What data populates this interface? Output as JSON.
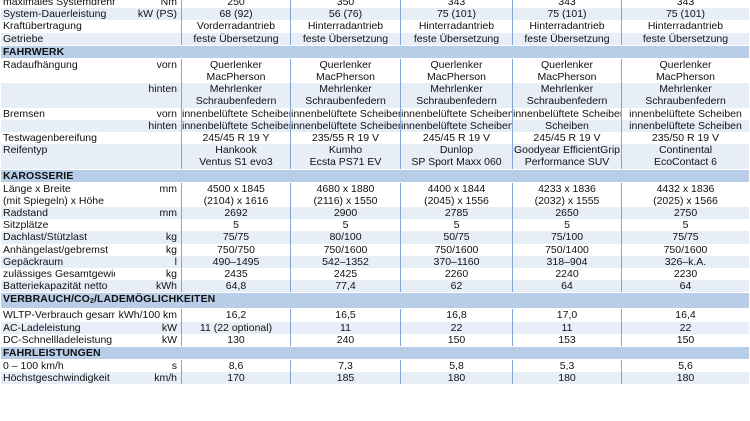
{
  "colors": {
    "section_bg": "#b8cde8",
    "alt_row_bg": "#e7eef8",
    "divider": "#7fa8d6"
  },
  "rows": [
    {
      "type": "data",
      "label": "maximales Systemdrehmoment",
      "unit": "Nm",
      "values": [
        "250",
        "350",
        "343",
        "343",
        "343"
      ]
    },
    {
      "type": "data",
      "label": "System-Dauerleistung",
      "unit": "kW (PS)",
      "values": [
        "68 (92)",
        "56 (76)",
        "75 (101)",
        "75 (101)",
        "75 (101)"
      ]
    },
    {
      "type": "data",
      "label": "Kraftübertragung",
      "unit": "",
      "values": [
        "Vorderradantrieb",
        "Hinterradantrieb",
        "Hinterradantrieb",
        "Hinterradantrieb",
        "Hinterradantrieb"
      ]
    },
    {
      "type": "data",
      "label": "Getriebe",
      "unit": "",
      "values": [
        "feste Übersetzung",
        "feste Übersetzung",
        "feste Übersetzung",
        "feste Übersetzung",
        "feste Übersetzung"
      ]
    },
    {
      "type": "section",
      "title": "FAHRWERK"
    },
    {
      "type": "data",
      "label": "Radaufhängung",
      "unit": "vorn",
      "values": [
        "Querlenker\nMacPherson",
        "Querlenker\nMacPherson",
        "Querlenker\nMacPherson",
        "Querlenker\nMacPherson",
        "Querlenker\nMacPherson"
      ]
    },
    {
      "type": "data",
      "label": "",
      "unit": "hinten",
      "values": [
        "Mehrlenker\nSchraubenfedern",
        "Mehrlenker\nSchraubenfedern",
        "Mehrlenker\nSchraubenfedern",
        "Mehrlenker\nSchraubenfedern",
        "Mehrlenker\nSchraubenfedern"
      ]
    },
    {
      "type": "data",
      "label": "Bremsen",
      "unit": "vorn",
      "values": [
        "innenbelüftete Scheiben",
        "innenbelüftete Scheiben",
        "innenbelüftete Scheiben",
        "innenbelüftete Scheiben",
        "innenbelüftete Scheiben"
      ]
    },
    {
      "type": "data",
      "label": "",
      "unit": "hinten",
      "values": [
        "innenbelüftete Scheiben",
        "innenbelüftete Scheiben",
        "innenbelüftete Scheiben",
        "Scheiben",
        "innenbelüftete Scheiben"
      ]
    },
    {
      "type": "data",
      "label": "Testwagenbereifung",
      "unit": "",
      "values": [
        "245/45 R 19 Y",
        "235/55 R 19 V",
        "245/45 R 19 V",
        "245/45 R 19 V",
        "235/50 R 19 V"
      ]
    },
    {
      "type": "data",
      "label": "Reifentyp",
      "unit": "",
      "values": [
        "Hankook\nVentus S1 evo3",
        "Kumho\nEcsta PS71 EV",
        "Dunlop\nSP Sport Maxx 060",
        "Goodyear EfficientGrip\nPerformance SUV",
        "Continental\nEcoContact 6"
      ]
    },
    {
      "type": "section",
      "title": "KAROSSERIE"
    },
    {
      "type": "data",
      "label": "Länge x Breite\n(mit Spiegeln) x Höhe",
      "unit": "mm",
      "values": [
        "4500 x 1845\n(2104) x 1616",
        "4680 x 1880\n(2116) x 1550",
        "4400 x 1844\n(2045) x 1556",
        "4233 x 1836\n(2032) x 1555",
        "4432 x 1836\n(2025) x 1566"
      ]
    },
    {
      "type": "data",
      "label": "Radstand",
      "unit": "mm",
      "values": [
        "2692",
        "2900",
        "2785",
        "2650",
        "2750"
      ]
    },
    {
      "type": "data",
      "label": "Sitzplätze",
      "unit": "",
      "values": [
        "5",
        "5",
        "5",
        "5",
        "5"
      ]
    },
    {
      "type": "data",
      "label": "Dachlast/Stützlast",
      "unit": "kg",
      "values": [
        "75/75",
        "80/100",
        "50/75",
        "75/100",
        "75/75"
      ]
    },
    {
      "type": "data",
      "label": "Anhängelast/gebremst",
      "unit": "kg",
      "values": [
        "750/750",
        "750/1600",
        "750/1600",
        "750/1400",
        "750/1600"
      ]
    },
    {
      "type": "data",
      "label": "Gepäckraum",
      "unit": "l",
      "values": [
        "490–1495",
        "542–1352",
        "370–1160",
        "318–904",
        "326–k.A."
      ]
    },
    {
      "type": "data",
      "label": "zulässiges Gesamtgewicht",
      "unit": "kg",
      "values": [
        "2435",
        "2425",
        "2260",
        "2240",
        "2230"
      ]
    },
    {
      "type": "data",
      "label": "Batteriekapazität netto",
      "unit": "kWh",
      "values": [
        "64,8",
        "77,4",
        "62",
        "64",
        "64"
      ]
    },
    {
      "type": "section",
      "title_pre": "VERBRAUCH/CO",
      "title_sub": "2",
      "title_post": "/LADEMÖGLICHKEITEN"
    },
    {
      "type": "data",
      "label": "WLTP-Verbrauch gesamt",
      "unit": "kWh/100 km",
      "values": [
        "16,2",
        "16,5",
        "16,8",
        "17,0",
        "16,4"
      ]
    },
    {
      "type": "data",
      "label": "AC-Ladeleistung",
      "unit": "kW",
      "values": [
        "11 (22 optional)",
        "11",
        "22",
        "11",
        "22"
      ]
    },
    {
      "type": "data",
      "label": "DC-Schnellladeleistung",
      "unit": "kW",
      "values": [
        "130",
        "240",
        "150",
        "153",
        "150"
      ]
    },
    {
      "type": "section",
      "title": "FAHRLEISTUNGEN"
    },
    {
      "type": "data",
      "label": "0 – 100 km/h",
      "unit": "s",
      "values": [
        "8,6",
        "7,3",
        "5,8",
        "5,3",
        "5,6"
      ]
    },
    {
      "type": "data",
      "label": "Höchstgeschwindigkeit",
      "unit": "km/h",
      "values": [
        "170",
        "185",
        "180",
        "180",
        "180"
      ]
    }
  ]
}
